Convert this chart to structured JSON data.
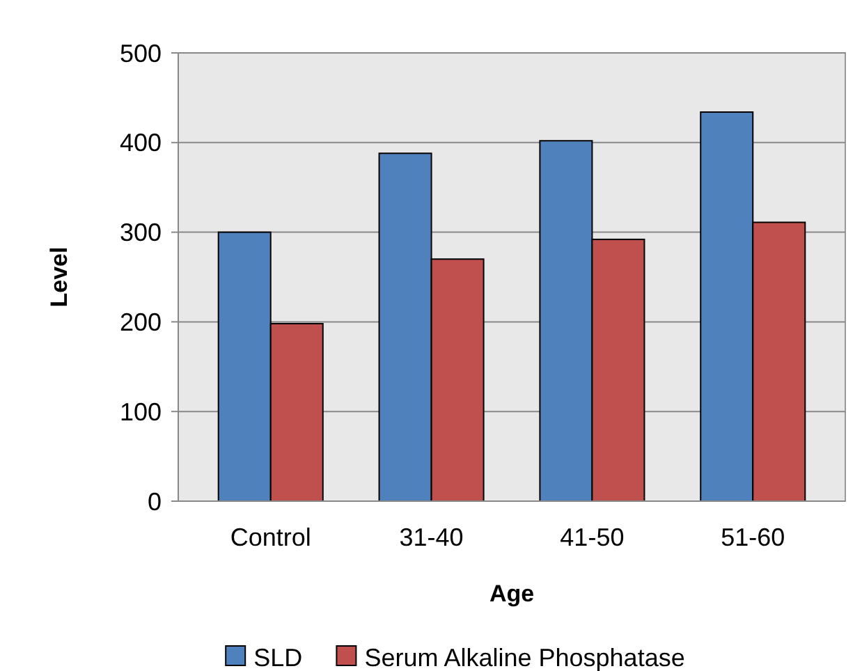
{
  "chart_data": {
    "type": "bar",
    "xlabel": "Age",
    "ylabel": "Level",
    "categories": [
      "Control",
      "31-40",
      "41-50",
      "51-60"
    ],
    "series": [
      {
        "name": "SLD",
        "color": "#4f81bd",
        "values": [
          300,
          388,
          402,
          434
        ]
      },
      {
        "name": "Serum Alkaline Phosphatase",
        "color": "#c0504d",
        "values": [
          198,
          270,
          292,
          311
        ]
      }
    ],
    "ylim": [
      0,
      500
    ],
    "yticks": [
      0,
      100,
      200,
      300,
      400,
      500
    ],
    "grid": "y",
    "legend": "bottom"
  }
}
